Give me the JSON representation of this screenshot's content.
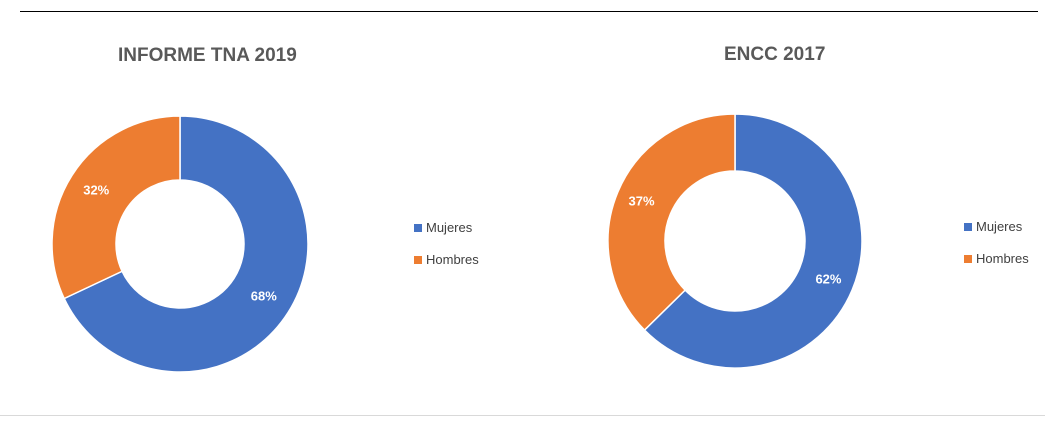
{
  "chart_data": [
    {
      "type": "pie",
      "title": "INFORME TNA 2019",
      "categories": [
        "Mujeres",
        "Hombres"
      ],
      "values": [
        68,
        32
      ],
      "data_labels": [
        "68%",
        "32%"
      ],
      "colors": [
        "#4472C4",
        "#ED7D31"
      ],
      "legend": "right",
      "hole": "donut"
    },
    {
      "type": "pie",
      "title": "ENCC 2017",
      "categories": [
        "Mujeres",
        "Hombres"
      ],
      "values": [
        62,
        37
      ],
      "data_labels": [
        "62%",
        "37%"
      ],
      "colors": [
        "#4472C4",
        "#ED7D31"
      ],
      "legend": "right",
      "hole": "donut"
    }
  ]
}
